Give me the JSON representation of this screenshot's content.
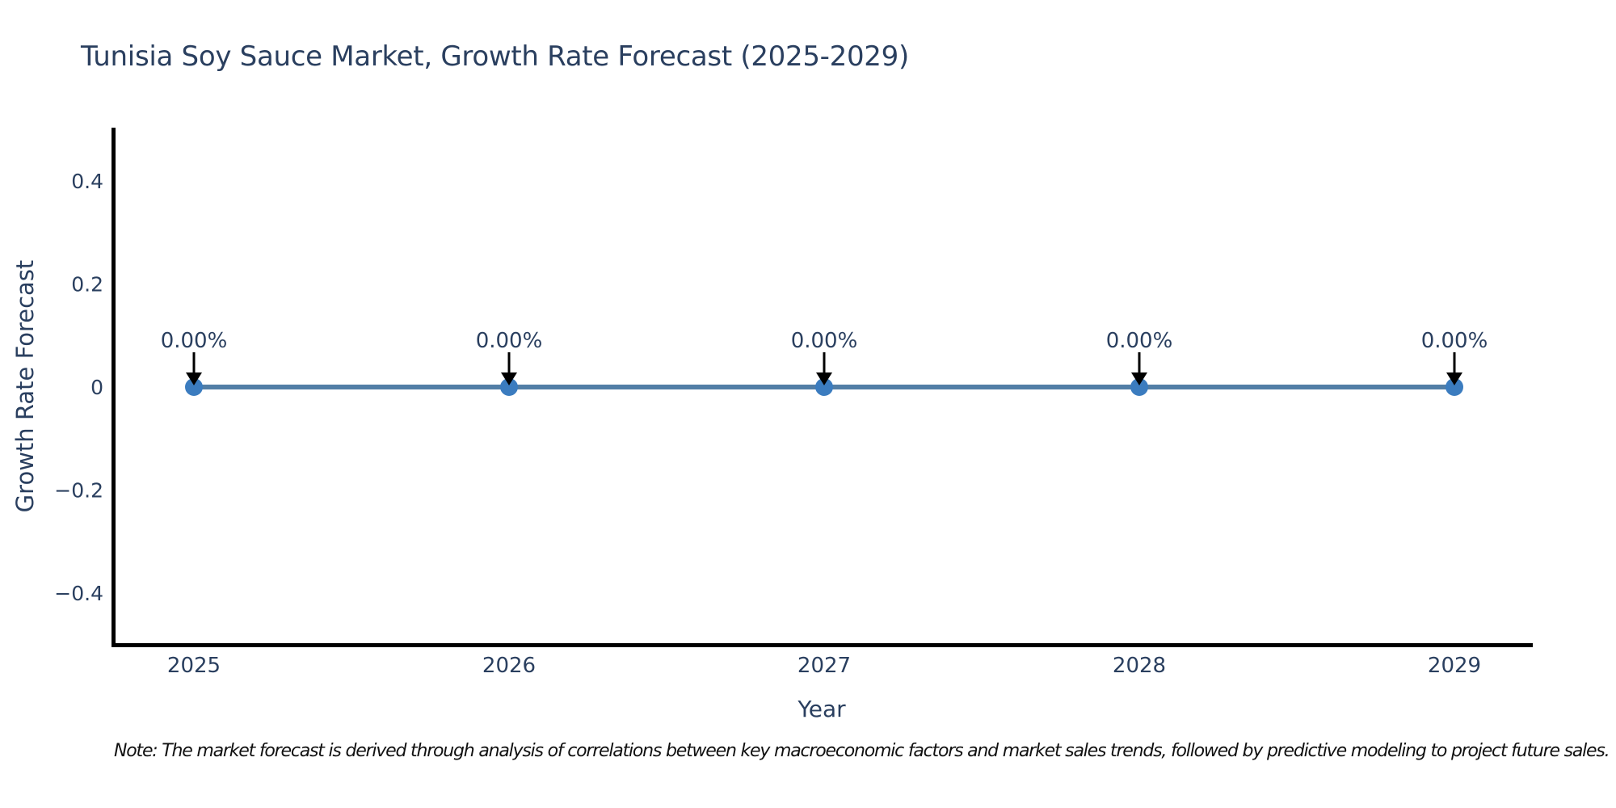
{
  "note": "Note: The market forecast is derived through analysis of correlations between key macroeconomic factors and market sales trends, followed by predictive modeling to project future sales.",
  "chart_data": {
    "type": "line",
    "title": "Tunisia Soy Sauce Market, Growth Rate Forecast (2025-2029)",
    "xlabel": "Year",
    "ylabel": "Growth Rate Forecast",
    "categories": [
      "2025",
      "2026",
      "2027",
      "2028",
      "2029"
    ],
    "series": [
      {
        "name": "Growth Rate Forecast",
        "values": [
          0,
          0,
          0,
          0,
          0
        ],
        "point_labels": [
          "0.00%",
          "0.00%",
          "0.00%",
          "0.00%",
          "0.00%"
        ],
        "line_color": "#527ea6",
        "marker_color": "#3b7cbf"
      }
    ],
    "yticks": {
      "values": [
        0.4,
        0.2,
        0,
        -0.2,
        -0.4
      ],
      "labels": [
        "0.4",
        "0.2",
        "0",
        "−0.2",
        "−0.4"
      ]
    },
    "ylim": [
      -0.5,
      0.5
    ],
    "grid": false,
    "legend_position": "none",
    "annotations": {
      "style": "arrow-down-to-point",
      "color": "#000000"
    },
    "colors": {
      "text": "#2a3f5f",
      "axis_line": "#000000",
      "note_text": "#111111",
      "background": "#ffffff"
    }
  }
}
